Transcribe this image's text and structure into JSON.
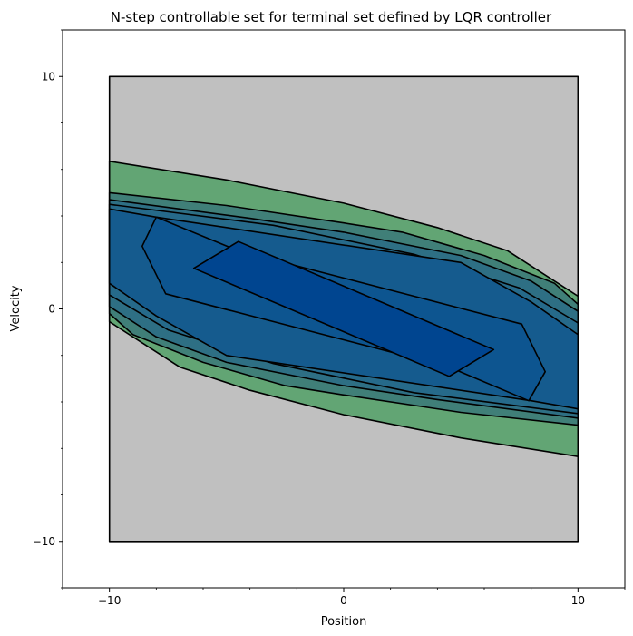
{
  "chart_data": {
    "type": "area",
    "title": "N-step controllable set for terminal set defined by LQR controller",
    "xlabel": "Position",
    "ylabel": "Velocity",
    "xlim": [
      -12,
      12
    ],
    "ylim": [
      -12,
      12
    ],
    "xticks": [
      {
        "value": -10,
        "label": "−10"
      },
      {
        "value": 0,
        "label": "0"
      },
      {
        "value": 10,
        "label": "10"
      }
    ],
    "yticks": [
      {
        "value": -10,
        "label": "−10"
      },
      {
        "value": 0,
        "label": "0"
      },
      {
        "value": 10,
        "label": "10"
      }
    ],
    "grid": false,
    "regions": [
      {
        "color": "#c0c0c0",
        "points": [
          [
            -10,
            -10
          ],
          [
            10,
            -10
          ],
          [
            10,
            10
          ],
          [
            -10,
            10
          ]
        ]
      },
      {
        "color": "#62a574",
        "points": [
          [
            -10,
            6.35
          ],
          [
            -5,
            5.55
          ],
          [
            0,
            4.55
          ],
          [
            4,
            3.5
          ],
          [
            7,
            2.5
          ],
          [
            10,
            0.55
          ],
          [
            10,
            -6.35
          ],
          [
            5,
            -5.55
          ],
          [
            0,
            -4.55
          ],
          [
            -4,
            -3.5
          ],
          [
            -7,
            -2.5
          ],
          [
            -10,
            -0.55
          ]
        ]
      },
      {
        "color": "#407f78",
        "points": [
          [
            -10,
            5.0
          ],
          [
            -5,
            4.45
          ],
          [
            0,
            3.7
          ],
          [
            2.5,
            3.3
          ],
          [
            6,
            2.3
          ],
          [
            9,
            1.1
          ],
          [
            10,
            0.2
          ],
          [
            10,
            -5.0
          ],
          [
            5,
            -4.45
          ],
          [
            0,
            -3.7
          ],
          [
            -2.5,
            -3.3
          ],
          [
            -6,
            -2.3
          ],
          [
            -9,
            -1.1
          ],
          [
            -10,
            -0.2
          ]
        ]
      },
      {
        "color": "#2e6f84",
        "points": [
          [
            -10,
            4.7
          ],
          [
            -4,
            3.9
          ],
          [
            0,
            3.3
          ],
          [
            5,
            2.3
          ],
          [
            8,
            1.2
          ],
          [
            10,
            -0.1
          ],
          [
            10,
            -4.7
          ],
          [
            4,
            -3.9
          ],
          [
            0,
            -3.3
          ],
          [
            -5,
            -2.3
          ],
          [
            -8,
            -1.2
          ],
          [
            -10,
            0.1
          ]
        ]
      },
      {
        "color": "#266a8a",
        "points": [
          [
            -10,
            4.5
          ],
          [
            -3,
            3.6
          ],
          [
            3,
            2.35
          ],
          [
            7.5,
            0.9
          ],
          [
            10,
            -0.6
          ],
          [
            10,
            -4.5
          ],
          [
            3,
            -3.6
          ],
          [
            -3,
            -2.35
          ],
          [
            -7.5,
            -0.9
          ],
          [
            -10,
            0.6
          ]
        ]
      },
      {
        "color": "#155b8e",
        "points": [
          [
            -10,
            4.3
          ],
          [
            -8,
            3.95
          ],
          [
            5,
            2.0
          ],
          [
            8,
            0.3
          ],
          [
            10,
            -1.1
          ],
          [
            10,
            -4.3
          ],
          [
            8,
            -3.95
          ],
          [
            -5,
            -2.0
          ],
          [
            -8,
            -0.3
          ],
          [
            -10,
            1.1
          ]
        ]
      },
      {
        "color": "#0d5590",
        "points": [
          [
            -8,
            3.95
          ],
          [
            -4.5,
            2.5
          ],
          [
            7.6,
            -0.65
          ],
          [
            8.6,
            -2.7
          ],
          [
            7.9,
            -3.95
          ],
          [
            4.5,
            -2.5
          ],
          [
            -7.6,
            0.65
          ],
          [
            -8.6,
            2.7
          ]
        ]
      },
      {
        "color": "#004590",
        "points": [
          [
            -6.4,
            1.75
          ],
          [
            -4.5,
            2.9
          ],
          [
            6.4,
            -1.75
          ],
          [
            4.5,
            -2.9
          ]
        ]
      }
    ]
  }
}
